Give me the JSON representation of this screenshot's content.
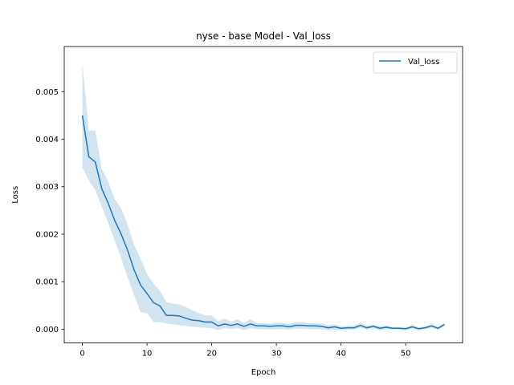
{
  "chart_data": {
    "type": "line",
    "title": "nyse - base Model - Val_loss",
    "xlabel": "Epoch",
    "ylabel": "Loss",
    "xlim": [
      -2.8,
      58.8
    ],
    "ylim": [
      -0.00029,
      0.00595
    ],
    "xticks": [
      0,
      10,
      20,
      30,
      40,
      50
    ],
    "yticks": [
      0.0,
      0.001,
      0.002,
      0.003,
      0.004,
      0.005
    ],
    "ytick_labels": [
      "0.000",
      "0.001",
      "0.002",
      "0.003",
      "0.004",
      "0.005"
    ],
    "grid": false,
    "legend": {
      "position": "top-right",
      "entries": [
        "Val_loss"
      ]
    },
    "series": [
      {
        "name": "Val_loss",
        "color": "#1f77b4",
        "band_color": "#1f77b4",
        "x": [
          0,
          1,
          2,
          3,
          4,
          5,
          6,
          7,
          8,
          9,
          10,
          11,
          12,
          13,
          14,
          15,
          16,
          17,
          18,
          19,
          20,
          21,
          22,
          23,
          24,
          25,
          26,
          27,
          28,
          29,
          30,
          31,
          32,
          33,
          34,
          35,
          36,
          37,
          38,
          39,
          40,
          41,
          42,
          43,
          44,
          45,
          46,
          47,
          48,
          49,
          50,
          51,
          52,
          53,
          54,
          55,
          56
        ],
        "values": [
          0.0045,
          0.00363,
          0.00352,
          0.00296,
          0.00265,
          0.00229,
          0.002,
          0.00166,
          0.00125,
          0.00093,
          0.00075,
          0.00056,
          0.00049,
          0.00029,
          0.00029,
          0.00028,
          0.00023,
          0.00019,
          0.00018,
          0.00015,
          0.00015,
          7e-05,
          0.00011,
          8e-05,
          0.00011,
          6e-05,
          0.00011,
          7e-05,
          7e-05,
          6e-05,
          7e-05,
          7e-05,
          5e-05,
          8e-05,
          8e-05,
          7e-05,
          7e-05,
          6e-05,
          3e-05,
          5e-05,
          2e-05,
          3e-05,
          3e-05,
          8e-05,
          3e-05,
          6e-05,
          2e-05,
          4e-05,
          2e-05,
          2e-05,
          1e-05,
          5e-05,
          1e-05,
          3e-05,
          7e-05,
          2e-05,
          0.0001
        ],
        "lower": [
          0.0034,
          0.00313,
          0.00293,
          0.00258,
          0.00223,
          0.00187,
          0.00149,
          0.00109,
          0.00072,
          0.00036,
          0.00034,
          0.00015,
          0.00015,
          0.00012,
          0.0001,
          8e-05,
          7e-05,
          5e-05,
          4e-05,
          3e-05,
          2e-05,
          -2e-05,
          2e-05,
          0.0,
          2e-05,
          -2e-05,
          2e-05,
          0.0,
          0.0,
          -1e-05,
          0.0,
          0.0,
          -1e-05,
          1e-05,
          1e-05,
          0.0,
          0.0,
          0.0,
          -2e-05,
          -1e-05,
          -2e-05,
          -1e-05,
          -1e-05,
          3e-05,
          -1e-05,
          2e-05,
          -2e-05,
          0.0,
          -1e-05,
          -1e-05,
          -2e-05,
          1e-05,
          -2e-05,
          0.0,
          3e-05,
          -1e-05,
          6e-05
        ],
        "upper": [
          0.0056,
          0.00418,
          0.00418,
          0.00338,
          0.00311,
          0.00274,
          0.00254,
          0.0022,
          0.00177,
          0.00149,
          0.00116,
          0.00096,
          0.00081,
          0.00057,
          0.00054,
          0.00052,
          0.00047,
          0.0004,
          0.00034,
          0.00029,
          0.00029,
          0.00017,
          0.00022,
          0.00016,
          0.00021,
          0.00013,
          0.00021,
          0.00013,
          0.00013,
          0.00012,
          0.00014,
          0.00013,
          0.00011,
          0.00015,
          0.00015,
          0.00013,
          0.00013,
          0.00012,
          8e-05,
          0.0001,
          6e-05,
          7e-05,
          7e-05,
          0.00014,
          7e-05,
          0.0001,
          6e-05,
          8e-05,
          5e-05,
          5e-05,
          4e-05,
          9e-05,
          4e-05,
          6e-05,
          0.00011,
          5e-05,
          0.00014
        ]
      }
    ]
  }
}
